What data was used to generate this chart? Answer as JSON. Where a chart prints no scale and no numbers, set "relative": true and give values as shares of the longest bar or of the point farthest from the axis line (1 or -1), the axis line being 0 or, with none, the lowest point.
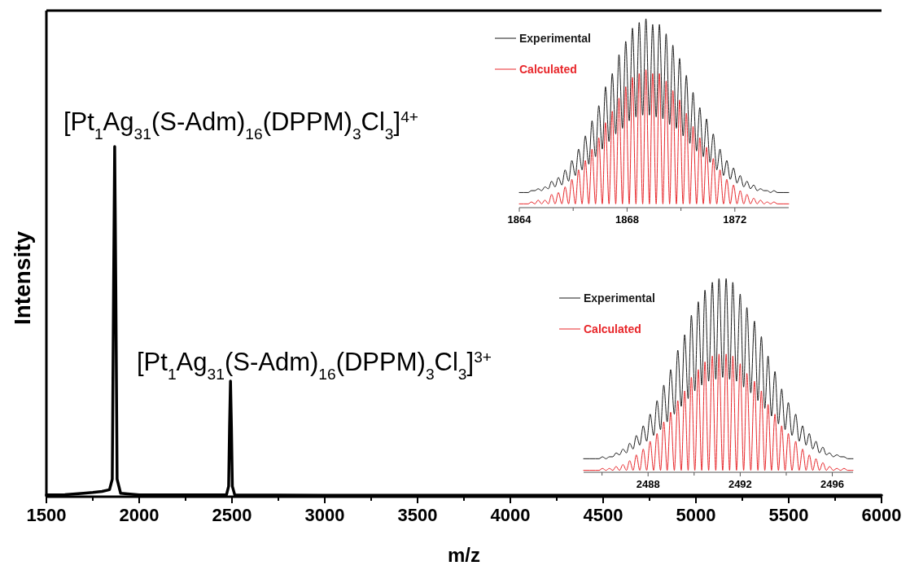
{
  "chart_data": [
    {
      "type": "line",
      "relative": true,
      "xlabel": "m/z",
      "ylabel": "Intensity",
      "tick_labels": "x",
      "xlim": [
        1500,
        6000
      ],
      "xticks": [
        1500,
        {
          "value": 1750,
          "label": null
        },
        2000,
        {
          "value": 2250,
          "label": null
        },
        2500,
        {
          "value": 2750,
          "label": null
        },
        3000,
        {
          "value": 3250,
          "label": null
        },
        3500,
        {
          "value": 3750,
          "label": null
        },
        4000,
        {
          "value": 4250,
          "label": null
        },
        4500,
        {
          "value": 4750,
          "label": null
        },
        5000,
        {
          "value": 5250,
          "label": null
        },
        5500,
        {
          "value": 5750,
          "label": null
        },
        6000
      ],
      "x": [
        1500,
        1600,
        1700,
        1750,
        1800,
        1840,
        1855,
        1862,
        1868,
        1874,
        1881,
        1900,
        2000,
        2200,
        2470,
        2482,
        2487,
        2492,
        2497,
        2502,
        2515,
        3000,
        4000,
        5000,
        6000
      ],
      "series": [
        {
          "color": "#000000",
          "values": [
            0.005,
            0.006,
            0.01,
            0.012,
            0.015,
            0.02,
            0.05,
            0.6,
            1,
            0.6,
            0.05,
            0.01,
            0.005,
            0.005,
            0.005,
            0.03,
            0.2,
            0.33,
            0.2,
            0.03,
            0.005,
            0.004,
            0.004,
            0.004,
            0.004
          ]
        }
      ],
      "annotations": [
        "[Pt$_{1}$Ag$_{31}$(S-Adm)$_{16}$(DPPM)$_{3}$Cl$_{3}$]$^{4+}$",
        "[Pt$_{1}$Ag$_{31}$(S-Adm)$_{16}$(DPPM)$_{3}$Cl$_{3}$]$^{3+}$"
      ]
    },
    {
      "type": "line",
      "relative": true,
      "tick_labels": "x",
      "legend": "top left",
      "xlim": [
        1864,
        1874
      ],
      "xticks": [
        1864,
        {
          "value": 1866,
          "label": null
        },
        1868,
        {
          "value": 1870,
          "label": null
        },
        1872
      ],
      "x": [
        1864.0,
        1864.33,
        1864.45,
        1864.58,
        1864.7,
        1864.83,
        1864.95,
        1865.08,
        1865.2,
        1865.33,
        1865.45,
        1865.58,
        1865.7,
        1865.83,
        1865.95,
        1866.08,
        1866.2,
        1866.33,
        1866.45,
        1866.58,
        1866.7,
        1866.83,
        1866.95,
        1867.08,
        1867.2,
        1867.33,
        1867.45,
        1867.58,
        1867.7,
        1867.83,
        1867.95,
        1868.08,
        1868.2,
        1868.33,
        1868.45,
        1868.58,
        1868.7,
        1868.83,
        1868.95,
        1869.08,
        1869.2,
        1869.33,
        1869.45,
        1869.58,
        1869.7,
        1869.83,
        1869.95,
        1870.08,
        1870.2,
        1870.33,
        1870.45,
        1870.58,
        1870.7,
        1870.83,
        1870.95,
        1871.08,
        1871.2,
        1871.33,
        1871.45,
        1871.58,
        1871.7,
        1871.83,
        1871.95,
        1872.08,
        1872.2,
        1872.33,
        1872.45,
        1872.58,
        1872.7,
        1872.83,
        1872.95,
        1873.08,
        1873.2,
        1873.33,
        1873.45,
        1873.58,
        1874.0
      ],
      "series": [
        {
          "name": "Experimental",
          "color": "#1a1a1a",
          "values": [
            0.08,
            0.08,
            0.09,
            0.09,
            0.1,
            0.09,
            0.11,
            0.1,
            0.14,
            0.11,
            0.16,
            0.12,
            0.2,
            0.14,
            0.25,
            0.17,
            0.31,
            0.2,
            0.38,
            0.23,
            0.46,
            0.27,
            0.54,
            0.31,
            0.64,
            0.35,
            0.71,
            0.39,
            0.81,
            0.42,
            0.88,
            0.46,
            0.95,
            0.48,
            0.98,
            0.49,
            1.0,
            0.49,
            0.97,
            0.48,
            0.97,
            0.47,
            0.92,
            0.44,
            0.86,
            0.42,
            0.79,
            0.38,
            0.7,
            0.34,
            0.61,
            0.3,
            0.53,
            0.27,
            0.47,
            0.24,
            0.39,
            0.2,
            0.31,
            0.17,
            0.25,
            0.15,
            0.21,
            0.13,
            0.17,
            0.11,
            0.14,
            0.1,
            0.12,
            0.09,
            0.1,
            0.09,
            0.09,
            0.08,
            0.09,
            0.08,
            0.08
          ]
        },
        {
          "name": "Calculated",
          "color": "#e8262a",
          "values": [
            0.02,
            0.02,
            0.03,
            0.02,
            0.04,
            0.02,
            0.04,
            0.02,
            0.07,
            0.02,
            0.08,
            0.02,
            0.11,
            0.02,
            0.15,
            0.02,
            0.2,
            0.02,
            0.25,
            0.02,
            0.31,
            0.02,
            0.37,
            0.02,
            0.45,
            0.02,
            0.51,
            0.02,
            0.58,
            0.02,
            0.64,
            0.02,
            0.69,
            0.02,
            0.71,
            0.02,
            0.73,
            0.02,
            0.71,
            0.02,
            0.71,
            0.02,
            0.67,
            0.02,
            0.62,
            0.02,
            0.57,
            0.02,
            0.5,
            0.02,
            0.43,
            0.02,
            0.37,
            0.02,
            0.32,
            0.02,
            0.26,
            0.02,
            0.2,
            0.02,
            0.15,
            0.02,
            0.12,
            0.02,
            0.09,
            0.02,
            0.07,
            0.02,
            0.05,
            0.02,
            0.04,
            0.02,
            0.03,
            0.02,
            0.03,
            0.02,
            0.02
          ]
        }
      ]
    },
    {
      "type": "line",
      "relative": true,
      "tick_labels": "x",
      "legend": "top left",
      "xlim": [
        2485.2,
        2496.9
      ],
      "xticks": [
        {
          "value": 2486,
          "label": null
        },
        2488,
        {
          "value": 2490,
          "label": null
        },
        2492,
        {
          "value": 2494,
          "label": null
        },
        2496
      ],
      "x": [
        2485.2,
        2485.71,
        2485.87,
        2486.02,
        2486.17,
        2486.32,
        2486.47,
        2486.61,
        2486.76,
        2486.91,
        2487.06,
        2487.2,
        2487.35,
        2487.49,
        2487.64,
        2487.79,
        2487.94,
        2488.09,
        2488.24,
        2488.39,
        2488.54,
        2488.68,
        2488.83,
        2488.98,
        2489.14,
        2489.29,
        2489.44,
        2489.59,
        2489.74,
        2489.88,
        2490.03,
        2490.18,
        2490.33,
        2490.47,
        2490.63,
        2490.79,
        2490.94,
        2491.08,
        2491.24,
        2491.39,
        2491.54,
        2491.68,
        2491.84,
        2492.0,
        2492.15,
        2492.29,
        2492.46,
        2492.62,
        2492.77,
        2492.92,
        2493.07,
        2493.21,
        2493.36,
        2493.51,
        2493.66,
        2493.8,
        2493.95,
        2494.09,
        2494.25,
        2494.41,
        2494.56,
        2494.71,
        2494.86,
        2495.0,
        2495.15,
        2495.29,
        2495.44,
        2495.59,
        2495.74,
        2495.88,
        2496.04,
        2496.2,
        2496.36,
        2496.51,
        2496.67,
        2496.82,
        2496.9
      ],
      "series": [
        {
          "name": "Experimental",
          "color": "#1a1a1a",
          "values": [
            0.07,
            0.07,
            0.07,
            0.08,
            0.07,
            0.08,
            0.08,
            0.1,
            0.09,
            0.12,
            0.1,
            0.15,
            0.12,
            0.19,
            0.14,
            0.24,
            0.16,
            0.3,
            0.19,
            0.37,
            0.22,
            0.45,
            0.26,
            0.53,
            0.3,
            0.63,
            0.34,
            0.71,
            0.38,
            0.81,
            0.42,
            0.88,
            0.45,
            0.94,
            0.47,
            0.98,
            0.48,
            1,
            0.49,
            1,
            0.48,
            0.98,
            0.47,
            0.92,
            0.44,
            0.85,
            0.41,
            0.78,
            0.37,
            0.7,
            0.33,
            0.6,
            0.29,
            0.52,
            0.25,
            0.43,
            0.22,
            0.36,
            0.19,
            0.3,
            0.16,
            0.24,
            0.14,
            0.2,
            0.12,
            0.16,
            0.1,
            0.13,
            0.09,
            0.1,
            0.08,
            0.09,
            0.08,
            0.08,
            0.07,
            0.07,
            0.07
          ]
        },
        {
          "name": "Calculated",
          "color": "#e8262a",
          "values": [
            0.01,
            0.01,
            0.01,
            0.02,
            0.01,
            0.02,
            0.01,
            0.03,
            0.01,
            0.04,
            0.01,
            0.06,
            0.01,
            0.09,
            0.01,
            0.12,
            0.01,
            0.16,
            0.01,
            0.2,
            0.01,
            0.26,
            0.01,
            0.31,
            0.01,
            0.37,
            0.01,
            0.42,
            0.01,
            0.49,
            0.01,
            0.53,
            0.01,
            0.57,
            0.01,
            0.6,
            0.01,
            0.61,
            0.01,
            0.61,
            0.01,
            0.6,
            0.01,
            0.56,
            0.01,
            0.51,
            0.01,
            0.47,
            0.01,
            0.42,
            0.01,
            0.35,
            0.01,
            0.3,
            0.01,
            0.24,
            0.01,
            0.2,
            0.01,
            0.16,
            0.01,
            0.12,
            0.01,
            0.09,
            0.01,
            0.07,
            0.01,
            0.05,
            0.01,
            0.03,
            0.01,
            0.02,
            0.01,
            0.02,
            0.01,
            0.01,
            0.01
          ]
        }
      ]
    }
  ]
}
